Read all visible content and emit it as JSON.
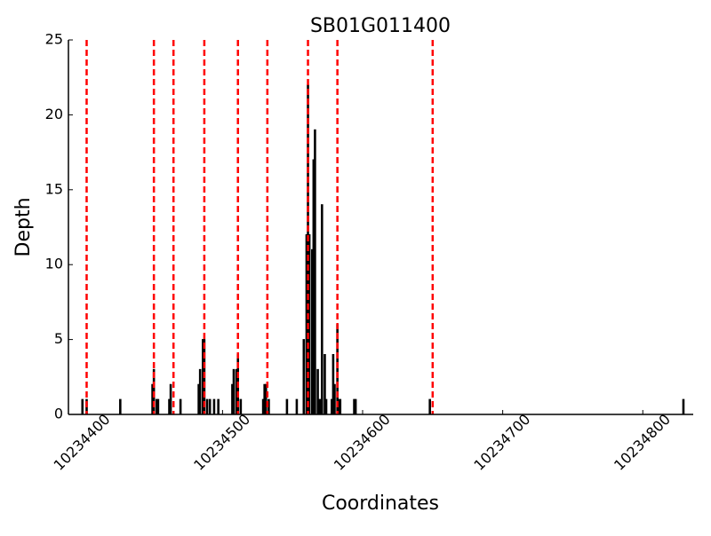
{
  "chart_data": {
    "type": "bar",
    "title": "SB01G011400",
    "x_label": "Coordinates",
    "y_label": "Depth",
    "x": [
      10234400,
      10234403,
      10234427,
      10234450,
      10234451,
      10234453,
      10234454,
      10234462,
      10234463,
      10234470,
      10234483,
      10234484,
      10234486,
      10234487,
      10234489,
      10234491,
      10234494,
      10234497,
      10234507,
      10234508,
      10234510,
      10234511,
      10234513,
      10234529,
      10234530,
      10234531,
      10234533,
      10234546,
      10234553,
      10234558,
      10234560,
      10234561,
      10234562,
      10234564,
      10234565,
      10234566,
      10234568,
      10234569,
      10234570,
      10234571,
      10234573,
      10234574,
      10234578,
      10234579,
      10234580,
      10234582,
      10234583,
      10234584,
      10234594,
      10234595,
      10234648,
      10234829
    ],
    "values": [
      1,
      1,
      1,
      2,
      3,
      1,
      1,
      1,
      2,
      1,
      2,
      3,
      5,
      5,
      1,
      1,
      1,
      1,
      2,
      3,
      3,
      4,
      1,
      1,
      2,
      2,
      1,
      1,
      1,
      5,
      12,
      22,
      12,
      11,
      17,
      19,
      3,
      1,
      1,
      14,
      4,
      1,
      1,
      4,
      2,
      6,
      1,
      1,
      1,
      1,
      1,
      1
    ],
    "color": "#000000",
    "vlines": [
      10234403,
      10234451,
      10234465,
      10234487,
      10234511,
      10234532,
      10234561,
      10234582,
      10234650
    ],
    "vline_color": "#ff0000",
    "xlim": [
      10234390,
      10234836
    ],
    "xticks": [
      10234400,
      10234500,
      10234600,
      10234700,
      10234800
    ],
    "ylim": [
      0,
      25
    ],
    "yticks": [
      0,
      5,
      10,
      15,
      20,
      25
    ]
  }
}
